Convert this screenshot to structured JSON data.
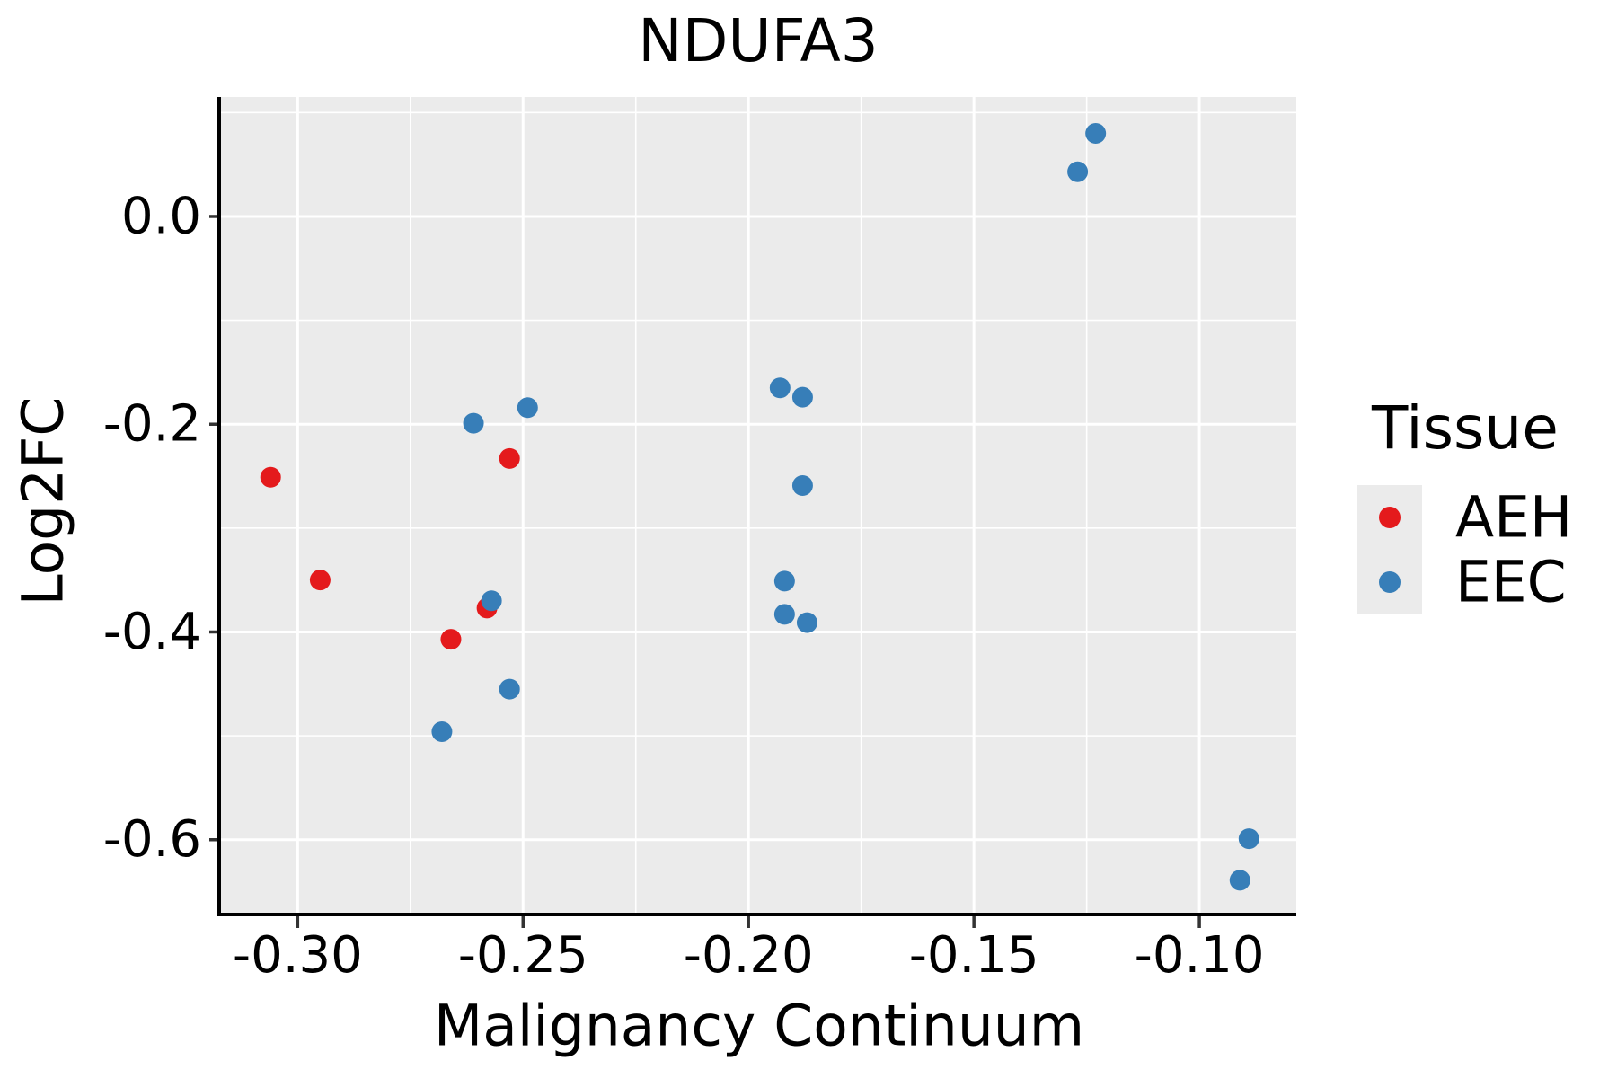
{
  "figure": {
    "title": "NDUFA3"
  },
  "chart_data": {
    "type": "scatter",
    "title": "NDUFA3",
    "xlabel": "Malignancy Continuum",
    "ylabel": "Log2FC",
    "xlim": [
      -0.317,
      -0.0785
    ],
    "ylim": [
      -0.672,
      0.115
    ],
    "x_ticks": {
      "values": [
        -0.3,
        -0.25,
        -0.2,
        -0.15,
        -0.1
      ],
      "labels": [
        "-0.30",
        "-0.25",
        "-0.20",
        "-0.15",
        "-0.10"
      ]
    },
    "y_ticks": {
      "values": [
        0.0,
        -0.2,
        -0.4,
        -0.6
      ],
      "labels": [
        "0.0",
        "-0.2",
        "-0.4",
        "-0.6"
      ]
    },
    "x_minor_ticks": [
      -0.275,
      -0.225,
      -0.175,
      -0.125
    ],
    "y_minor_ticks": [
      0.1,
      -0.1,
      -0.3,
      -0.5
    ],
    "grid": "major and minor white gridlines on gray panel",
    "legend": {
      "title": "Tissue",
      "position": "right",
      "entries": [
        {
          "label": "AEH",
          "color": "#E41A1C"
        },
        {
          "label": "EEC",
          "color": "#377EB8"
        }
      ]
    },
    "series": [
      {
        "name": "AEH",
        "color": "#E41A1C",
        "points": [
          [
            -0.306,
            -0.251
          ],
          [
            -0.295,
            -0.35
          ],
          [
            -0.253,
            -0.233
          ],
          [
            -0.258,
            -0.377
          ],
          [
            -0.266,
            -0.407
          ]
        ]
      },
      {
        "name": "EEC",
        "color": "#377EB8",
        "points": [
          [
            -0.261,
            -0.199
          ],
          [
            -0.249,
            -0.184
          ],
          [
            -0.257,
            -0.37
          ],
          [
            -0.253,
            -0.455
          ],
          [
            -0.268,
            -0.496
          ],
          [
            -0.193,
            -0.165
          ],
          [
            -0.188,
            -0.174
          ],
          [
            -0.188,
            -0.259
          ],
          [
            -0.192,
            -0.351
          ],
          [
            -0.192,
            -0.383
          ],
          [
            -0.187,
            -0.391
          ],
          [
            -0.123,
            0.08
          ],
          [
            -0.127,
            0.043
          ],
          [
            -0.089,
            -0.599
          ],
          [
            -0.091,
            -0.639
          ]
        ]
      }
    ],
    "styles": {
      "panel_bg": "#EBEBEB",
      "grid_color": "#FFFFFF",
      "axis_color": "#000000",
      "tick_color": "#333333",
      "text_color": "#000000",
      "point_radius": 11.5,
      "tick_font_size": 56
    }
  }
}
